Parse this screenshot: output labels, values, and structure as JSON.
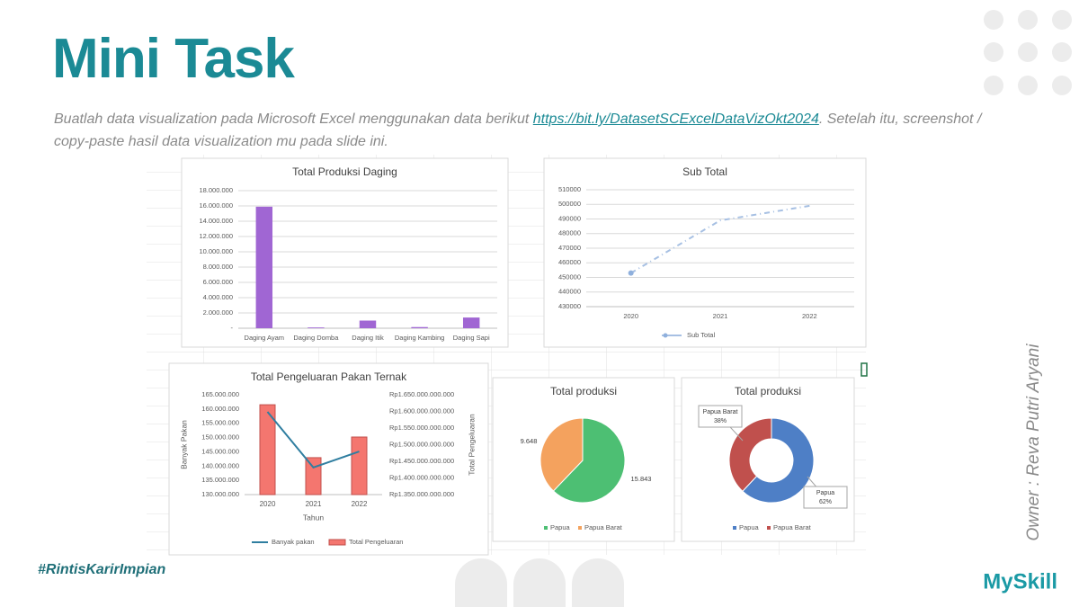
{
  "slide": {
    "title": "Mini Task",
    "instruction": {
      "before": "Buatlah data visualization pada Microsoft Excel menggunakan data berikut ",
      "link": "https://bit.ly/DatasetSCExcelDataVizOkt2024",
      "after": ". Setelah itu, screenshot / copy-paste hasil data visualization mu pada slide ini."
    },
    "owner": "Owner : Reva Putri Aryani",
    "hashtag": "#RintisKarirImpian",
    "logo": "MySkill"
  },
  "chart_data": [
    {
      "type": "bar",
      "title": "Total Produksi Daging",
      "categories": [
        "Daging Ayam",
        "Daging Domba",
        "Daging Itik",
        "Daging Kambing",
        "Daging Sapi"
      ],
      "values": [
        15900000,
        100000,
        1000000,
        150000,
        1400000
      ],
      "color": "#a066d3",
      "ylim": [
        0,
        18000000
      ],
      "yticks": [
        {
          "value": 0,
          "label": "-"
        },
        {
          "value": 2000000,
          "label": "2.000.000"
        },
        {
          "value": 4000000,
          "label": "4.000.000"
        },
        {
          "value": 6000000,
          "label": "6.000.000"
        },
        {
          "value": 8000000,
          "label": "8.000.000"
        },
        {
          "value": 10000000,
          "label": "10.000.000"
        },
        {
          "value": 12000000,
          "label": "12.000.000"
        },
        {
          "value": 14000000,
          "label": "14.000.000"
        },
        {
          "value": 16000000,
          "label": "16.000.000"
        },
        {
          "value": 18000000,
          "label": "18.000.000"
        }
      ],
      "grid": true
    },
    {
      "type": "line",
      "title": "Sub Total",
      "categories": [
        "2020",
        "2021",
        "2022"
      ],
      "series": [
        {
          "name": "Sub Total",
          "color": "#a7c0e3",
          "values": [
            453000,
            489000,
            499000
          ]
        }
      ],
      "ylim": [
        430000,
        510000
      ],
      "yticks": [
        430000,
        440000,
        450000,
        460000,
        470000,
        480000,
        490000,
        500000,
        510000
      ],
      "grid": true
    },
    {
      "type": "combo",
      "title": "Total Pengeluaran Pakan Ternak",
      "categories": [
        "2020",
        "2021",
        "2022"
      ],
      "xlabel": "Tahun",
      "ylabel": "Banyak Pakan",
      "y2label": "Total Pengeluaran",
      "series": [
        {
          "name": "Banyak pakan",
          "type": "line",
          "color": "#2f7ea0",
          "values": [
            159000000,
            139500000,
            145100000
          ]
        },
        {
          "name": "Total Pengeluaran",
          "type": "bar",
          "axis": "y2",
          "color": "#f4766f",
          "values": [
            1620000000000,
            1461000000000,
            1523000000000
          ]
        }
      ],
      "ylim": [
        130000000,
        165000000
      ],
      "yticks": [
        {
          "value": 130000000,
          "label": "130.000.000"
        },
        {
          "value": 135000000,
          "label": "135.000.000"
        },
        {
          "value": 140000000,
          "label": "140.000.000"
        },
        {
          "value": 145000000,
          "label": "145.000.000"
        },
        {
          "value": 150000000,
          "label": "150.000.000"
        },
        {
          "value": 155000000,
          "label": "155.000.000"
        },
        {
          "value": 160000000,
          "label": "160.000.000"
        },
        {
          "value": 165000000,
          "label": "165.000.000"
        }
      ],
      "y2lim": [
        1350000000000,
        1650000000000
      ],
      "y2ticks": [
        {
          "value": 1350000000000,
          "label": "Rp1.350.000.000.000"
        },
        {
          "value": 1400000000000,
          "label": "Rp1.400.000.000.000"
        },
        {
          "value": 1450000000000,
          "label": "Rp1.450.000.000.000"
        },
        {
          "value": 1500000000000,
          "label": "Rp1.500.000.000.000"
        },
        {
          "value": 1550000000000,
          "label": "Rp1.550.000.000.000"
        },
        {
          "value": 1600000000000,
          "label": "Rp1.600.000.000.000"
        },
        {
          "value": 1650000000000,
          "label": "Rp1.650.000.000.000"
        }
      ],
      "grid": false
    },
    {
      "type": "pie",
      "title": "Total produksi",
      "categories": [
        "Papua",
        "Papua Barat"
      ],
      "values": [
        15843,
        9648
      ],
      "value_labels": [
        "15.843",
        "9.648"
      ],
      "colors": [
        "#4dbf73",
        "#f4a25e"
      ]
    },
    {
      "type": "donut",
      "title": "Total produksi",
      "categories": [
        "Papua",
        "Papua Barat"
      ],
      "values": [
        62,
        38
      ],
      "value_labels": [
        "62%",
        "38%"
      ],
      "colors": [
        "#4e7fc6",
        "#c0504d"
      ]
    }
  ]
}
